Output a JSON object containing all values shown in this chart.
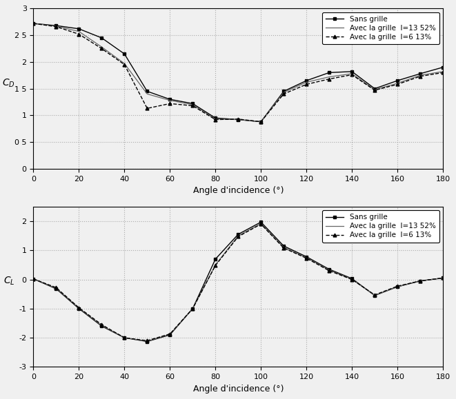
{
  "CD": {
    "x": [
      0,
      10,
      20,
      30,
      40,
      50,
      60,
      70,
      80,
      90,
      100,
      110,
      120,
      130,
      140,
      150,
      160,
      170,
      180
    ],
    "sans_grille": [
      2.72,
      2.68,
      2.62,
      2.45,
      2.15,
      1.45,
      1.3,
      1.22,
      0.95,
      0.92,
      0.88,
      1.45,
      1.65,
      1.8,
      1.82,
      1.5,
      1.65,
      1.78,
      1.9
    ],
    "avec_13": [
      2.72,
      2.67,
      2.57,
      2.28,
      1.97,
      1.4,
      1.28,
      1.2,
      0.93,
      0.92,
      0.88,
      1.43,
      1.62,
      1.72,
      1.78,
      1.48,
      1.6,
      1.75,
      1.82
    ],
    "avec_6": [
      2.72,
      2.66,
      2.52,
      2.25,
      1.95,
      1.13,
      1.22,
      1.18,
      0.92,
      0.93,
      0.88,
      1.4,
      1.58,
      1.68,
      1.76,
      1.47,
      1.58,
      1.73,
      1.8
    ],
    "ylim": [
      0,
      3
    ],
    "ytick_vals": [
      0,
      0.5,
      1.0,
      1.5,
      2.0,
      2.5,
      3.0
    ],
    "ytick_labels": [
      "0",
      "0 5",
      "1",
      "1 5",
      "2",
      "2 5",
      "3"
    ]
  },
  "CL": {
    "x": [
      0,
      10,
      20,
      30,
      40,
      50,
      60,
      70,
      80,
      90,
      100,
      110,
      120,
      130,
      140,
      150,
      160,
      170,
      180
    ],
    "sans_grille": [
      0.02,
      -0.32,
      -1.0,
      -1.6,
      -2.0,
      -2.13,
      -1.9,
      -1.0,
      0.7,
      1.55,
      1.97,
      1.15,
      0.78,
      0.35,
      0.03,
      -0.55,
      -0.25,
      -0.05,
      0.05
    ],
    "avec_13": [
      0.02,
      -0.3,
      -0.98,
      -1.58,
      -2.0,
      -2.12,
      -1.88,
      -1.0,
      0.5,
      1.5,
      1.92,
      1.1,
      0.75,
      0.32,
      0.01,
      -0.55,
      -0.25,
      -0.05,
      0.05
    ],
    "avec_6": [
      0.02,
      -0.28,
      -0.97,
      -1.55,
      -2.0,
      -2.1,
      -1.87,
      -1.0,
      0.48,
      1.47,
      1.9,
      1.08,
      0.73,
      0.3,
      0.0,
      -0.53,
      -0.23,
      -0.05,
      0.05
    ],
    "ylim": [
      -3,
      2.5
    ],
    "ytick_vals": [
      -3,
      -2,
      -1,
      0,
      1,
      2
    ],
    "ytick_labels": [
      "-3",
      "-2",
      "-1",
      "0",
      "1",
      "2"
    ]
  },
  "xticks": [
    0,
    20,
    40,
    60,
    80,
    100,
    120,
    140,
    160,
    180
  ],
  "xlabel": "Angle d'incidence (°)",
  "color_sans": "#000000",
  "color_avec13": "#666666",
  "color_avec6": "#000000",
  "legend_sans": "Sans grille",
  "legend_avec13": "Avec la grille  I=13 52%",
  "legend_avec6": "Avec la grille  I=6 13%",
  "bg_color": "#f0f0f0",
  "grid_color": "#aaaaaa",
  "grid_style": ":"
}
